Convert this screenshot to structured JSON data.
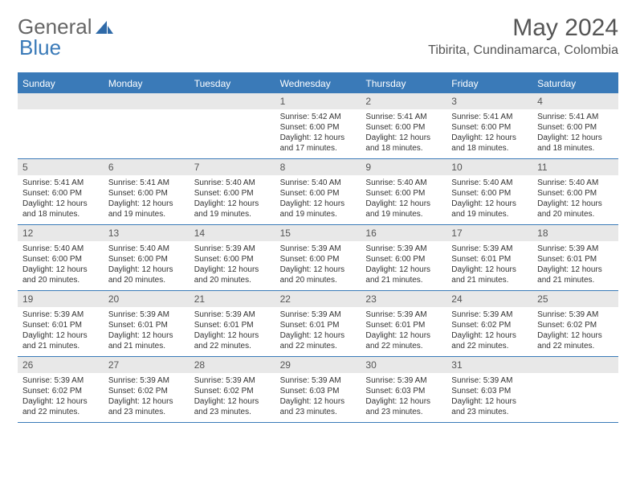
{
  "brand": {
    "text1": "General",
    "text2": "Blue"
  },
  "title": "May 2024",
  "location": "Tibirita, Cundinamarca, Colombia",
  "colors": {
    "accent": "#3a7ab8",
    "header_bg": "#3a7ab8",
    "daynum_bg": "#e8e8e8",
    "text": "#333333",
    "muted": "#666666",
    "background": "#ffffff"
  },
  "weekdays": [
    "Sunday",
    "Monday",
    "Tuesday",
    "Wednesday",
    "Thursday",
    "Friday",
    "Saturday"
  ],
  "weeks": [
    [
      null,
      null,
      null,
      {
        "n": "1",
        "sr": "Sunrise: 5:42 AM",
        "ss": "Sunset: 6:00 PM",
        "d1": "Daylight: 12 hours",
        "d2": "and 17 minutes."
      },
      {
        "n": "2",
        "sr": "Sunrise: 5:41 AM",
        "ss": "Sunset: 6:00 PM",
        "d1": "Daylight: 12 hours",
        "d2": "and 18 minutes."
      },
      {
        "n": "3",
        "sr": "Sunrise: 5:41 AM",
        "ss": "Sunset: 6:00 PM",
        "d1": "Daylight: 12 hours",
        "d2": "and 18 minutes."
      },
      {
        "n": "4",
        "sr": "Sunrise: 5:41 AM",
        "ss": "Sunset: 6:00 PM",
        "d1": "Daylight: 12 hours",
        "d2": "and 18 minutes."
      }
    ],
    [
      {
        "n": "5",
        "sr": "Sunrise: 5:41 AM",
        "ss": "Sunset: 6:00 PM",
        "d1": "Daylight: 12 hours",
        "d2": "and 18 minutes."
      },
      {
        "n": "6",
        "sr": "Sunrise: 5:41 AM",
        "ss": "Sunset: 6:00 PM",
        "d1": "Daylight: 12 hours",
        "d2": "and 19 minutes."
      },
      {
        "n": "7",
        "sr": "Sunrise: 5:40 AM",
        "ss": "Sunset: 6:00 PM",
        "d1": "Daylight: 12 hours",
        "d2": "and 19 minutes."
      },
      {
        "n": "8",
        "sr": "Sunrise: 5:40 AM",
        "ss": "Sunset: 6:00 PM",
        "d1": "Daylight: 12 hours",
        "d2": "and 19 minutes."
      },
      {
        "n": "9",
        "sr": "Sunrise: 5:40 AM",
        "ss": "Sunset: 6:00 PM",
        "d1": "Daylight: 12 hours",
        "d2": "and 19 minutes."
      },
      {
        "n": "10",
        "sr": "Sunrise: 5:40 AM",
        "ss": "Sunset: 6:00 PM",
        "d1": "Daylight: 12 hours",
        "d2": "and 19 minutes."
      },
      {
        "n": "11",
        "sr": "Sunrise: 5:40 AM",
        "ss": "Sunset: 6:00 PM",
        "d1": "Daylight: 12 hours",
        "d2": "and 20 minutes."
      }
    ],
    [
      {
        "n": "12",
        "sr": "Sunrise: 5:40 AM",
        "ss": "Sunset: 6:00 PM",
        "d1": "Daylight: 12 hours",
        "d2": "and 20 minutes."
      },
      {
        "n": "13",
        "sr": "Sunrise: 5:40 AM",
        "ss": "Sunset: 6:00 PM",
        "d1": "Daylight: 12 hours",
        "d2": "and 20 minutes."
      },
      {
        "n": "14",
        "sr": "Sunrise: 5:39 AM",
        "ss": "Sunset: 6:00 PM",
        "d1": "Daylight: 12 hours",
        "d2": "and 20 minutes."
      },
      {
        "n": "15",
        "sr": "Sunrise: 5:39 AM",
        "ss": "Sunset: 6:00 PM",
        "d1": "Daylight: 12 hours",
        "d2": "and 20 minutes."
      },
      {
        "n": "16",
        "sr": "Sunrise: 5:39 AM",
        "ss": "Sunset: 6:00 PM",
        "d1": "Daylight: 12 hours",
        "d2": "and 21 minutes."
      },
      {
        "n": "17",
        "sr": "Sunrise: 5:39 AM",
        "ss": "Sunset: 6:01 PM",
        "d1": "Daylight: 12 hours",
        "d2": "and 21 minutes."
      },
      {
        "n": "18",
        "sr": "Sunrise: 5:39 AM",
        "ss": "Sunset: 6:01 PM",
        "d1": "Daylight: 12 hours",
        "d2": "and 21 minutes."
      }
    ],
    [
      {
        "n": "19",
        "sr": "Sunrise: 5:39 AM",
        "ss": "Sunset: 6:01 PM",
        "d1": "Daylight: 12 hours",
        "d2": "and 21 minutes."
      },
      {
        "n": "20",
        "sr": "Sunrise: 5:39 AM",
        "ss": "Sunset: 6:01 PM",
        "d1": "Daylight: 12 hours",
        "d2": "and 21 minutes."
      },
      {
        "n": "21",
        "sr": "Sunrise: 5:39 AM",
        "ss": "Sunset: 6:01 PM",
        "d1": "Daylight: 12 hours",
        "d2": "and 22 minutes."
      },
      {
        "n": "22",
        "sr": "Sunrise: 5:39 AM",
        "ss": "Sunset: 6:01 PM",
        "d1": "Daylight: 12 hours",
        "d2": "and 22 minutes."
      },
      {
        "n": "23",
        "sr": "Sunrise: 5:39 AM",
        "ss": "Sunset: 6:01 PM",
        "d1": "Daylight: 12 hours",
        "d2": "and 22 minutes."
      },
      {
        "n": "24",
        "sr": "Sunrise: 5:39 AM",
        "ss": "Sunset: 6:02 PM",
        "d1": "Daylight: 12 hours",
        "d2": "and 22 minutes."
      },
      {
        "n": "25",
        "sr": "Sunrise: 5:39 AM",
        "ss": "Sunset: 6:02 PM",
        "d1": "Daylight: 12 hours",
        "d2": "and 22 minutes."
      }
    ],
    [
      {
        "n": "26",
        "sr": "Sunrise: 5:39 AM",
        "ss": "Sunset: 6:02 PM",
        "d1": "Daylight: 12 hours",
        "d2": "and 22 minutes."
      },
      {
        "n": "27",
        "sr": "Sunrise: 5:39 AM",
        "ss": "Sunset: 6:02 PM",
        "d1": "Daylight: 12 hours",
        "d2": "and 23 minutes."
      },
      {
        "n": "28",
        "sr": "Sunrise: 5:39 AM",
        "ss": "Sunset: 6:02 PM",
        "d1": "Daylight: 12 hours",
        "d2": "and 23 minutes."
      },
      {
        "n": "29",
        "sr": "Sunrise: 5:39 AM",
        "ss": "Sunset: 6:03 PM",
        "d1": "Daylight: 12 hours",
        "d2": "and 23 minutes."
      },
      {
        "n": "30",
        "sr": "Sunrise: 5:39 AM",
        "ss": "Sunset: 6:03 PM",
        "d1": "Daylight: 12 hours",
        "d2": "and 23 minutes."
      },
      {
        "n": "31",
        "sr": "Sunrise: 5:39 AM",
        "ss": "Sunset: 6:03 PM",
        "d1": "Daylight: 12 hours",
        "d2": "and 23 minutes."
      },
      null
    ]
  ]
}
